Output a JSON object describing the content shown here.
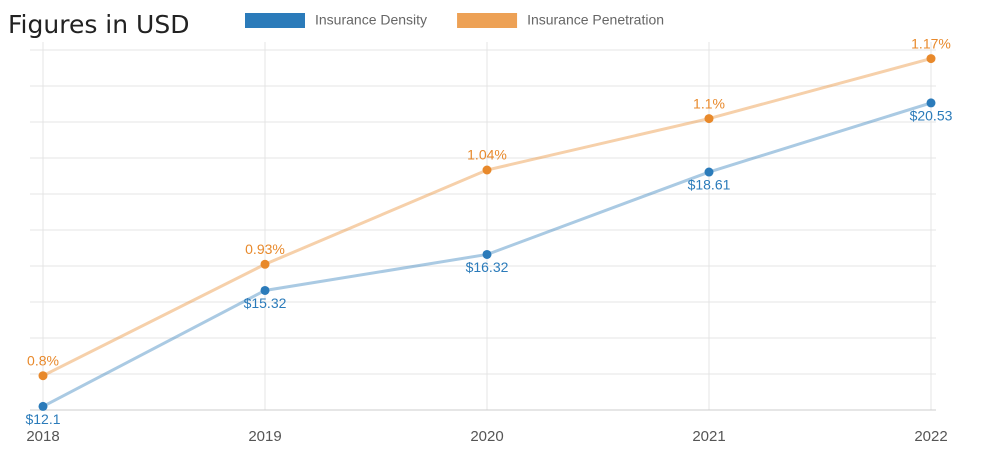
{
  "chart_data": {
    "type": "line",
    "title": "Figures in USD",
    "categories": [
      "2018",
      "2019",
      "2020",
      "2021",
      "2022"
    ],
    "series": [
      {
        "name": "Insurance Density",
        "color": "#2b7bba",
        "values": [
          12.1,
          15.32,
          16.32,
          18.61,
          20.53
        ],
        "value_labels": [
          "$12.1",
          "$15.32",
          "$16.32",
          "$18.61",
          "$20.53"
        ]
      },
      {
        "name": "Insurance Penetration",
        "color": "#e8892b",
        "axis": "y2",
        "values": [
          0.8,
          0.93,
          1.04,
          1.1,
          1.17
        ],
        "value_labels": [
          "0.8%",
          "0.93%",
          "1.04%",
          "1.1%",
          "1.17%"
        ]
      }
    ],
    "ylim": [
      12,
      22
    ],
    "y2lim": [
      0.76,
      1.18
    ],
    "grid": true,
    "legend": "top"
  }
}
